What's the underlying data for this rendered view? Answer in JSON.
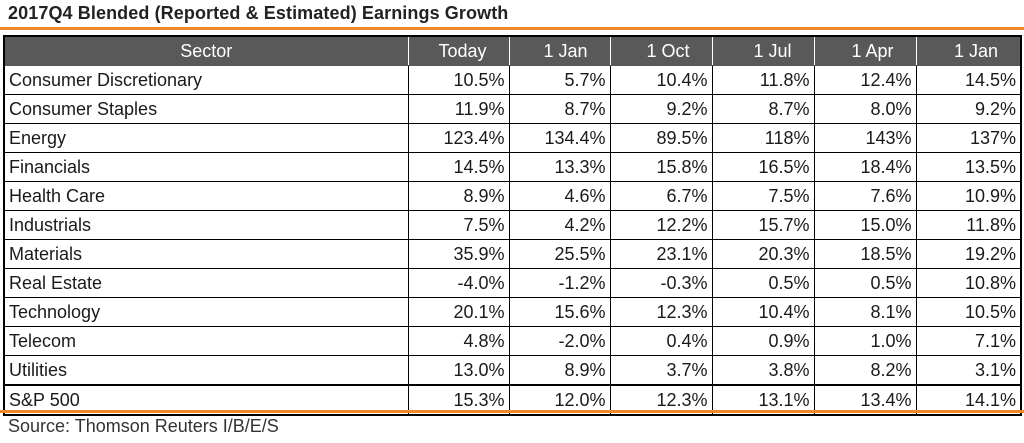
{
  "title": "2017Q4 Blended (Reported & Estimated) Earnings Growth",
  "source": "Source: Thomson Reuters I/B/E/S",
  "colors": {
    "accent_rule": "#f0882a",
    "header_fill": "#595959",
    "header_text": "#ffffff"
  },
  "chart_data": {
    "type": "table",
    "title": "2017Q4 Blended (Reported & Estimated) Earnings Growth",
    "columns": [
      "Sector",
      "Today",
      "1 Jan",
      "1 Oct",
      "1 Jul",
      "1 Apr",
      "1 Jan"
    ],
    "rows": [
      [
        "Consumer Discretionary",
        "10.5%",
        "5.7%",
        "10.4%",
        "11.8%",
        "12.4%",
        "14.5%"
      ],
      [
        "Consumer Staples",
        "11.9%",
        "8.7%",
        "9.2%",
        "8.7%",
        "8.0%",
        "9.2%"
      ],
      [
        "Energy",
        "123.4%",
        "134.4%",
        "89.5%",
        "118%",
        "143%",
        "137%"
      ],
      [
        "Financials",
        "14.5%",
        "13.3%",
        "15.8%",
        "16.5%",
        "18.4%",
        "13.5%"
      ],
      [
        "Health Care",
        "8.9%",
        "4.6%",
        "6.7%",
        "7.5%",
        "7.6%",
        "10.9%"
      ],
      [
        "Industrials",
        "7.5%",
        "4.2%",
        "12.2%",
        "15.7%",
        "15.0%",
        "11.8%"
      ],
      [
        "Materials",
        "35.9%",
        "25.5%",
        "23.1%",
        "20.3%",
        "18.5%",
        "19.2%"
      ],
      [
        "Real Estate",
        "-4.0%",
        "-1.2%",
        "-0.3%",
        "0.5%",
        "0.5%",
        "10.8%"
      ],
      [
        "Technology",
        "20.1%",
        "15.6%",
        "12.3%",
        "10.4%",
        "8.1%",
        "10.5%"
      ],
      [
        "Telecom",
        "4.8%",
        "-2.0%",
        "0.4%",
        "0.9%",
        "1.0%",
        "7.1%"
      ],
      [
        "Utilities",
        "13.0%",
        "8.9%",
        "3.7%",
        "3.8%",
        "8.2%",
        "3.1%"
      ]
    ],
    "total_row": [
      "S&P 500",
      "15.3%",
      "12.0%",
      "12.3%",
      "13.1%",
      "13.4%",
      "14.1%"
    ]
  }
}
